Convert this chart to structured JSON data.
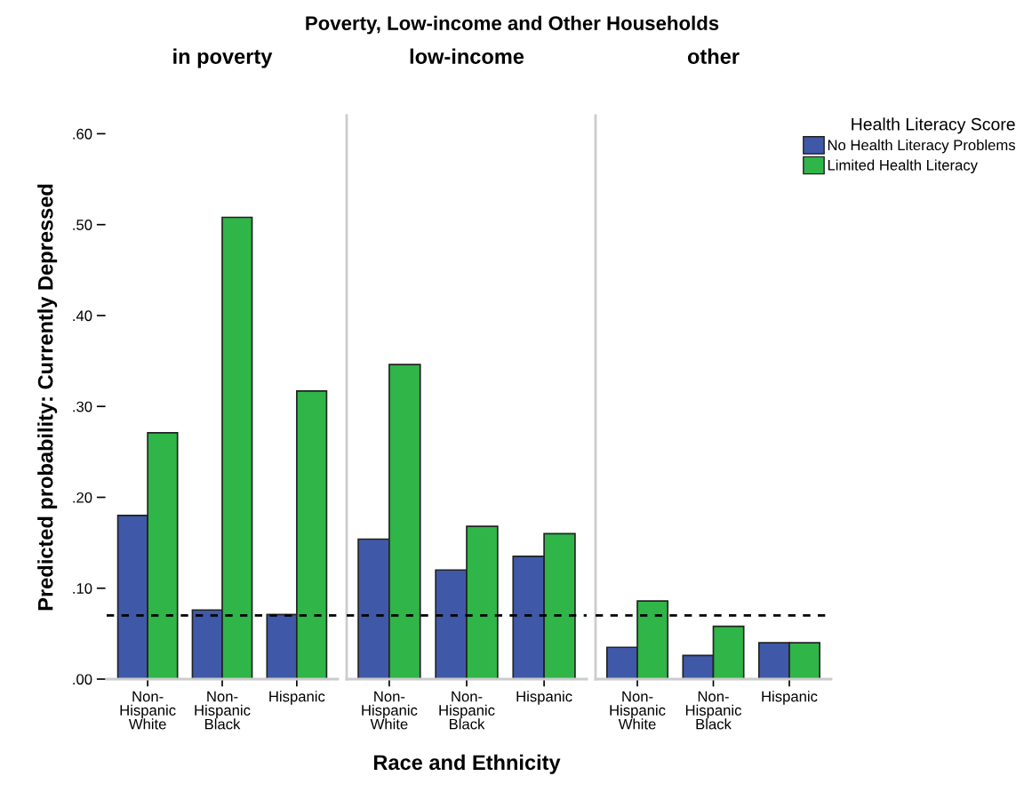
{
  "chart_data": [
    {
      "type": "bar",
      "title": "in poverty",
      "ylabel": "Predicted probability: Currently Depressed",
      "annotations": [
        "Poverty, Low-income and Other Households"
      ],
      "categories": [
        "Non-\nHispanic\nWhite",
        "Non-\nHispanic\nBlack",
        "Hispanic"
      ],
      "series": [
        {
          "color": "#3f59a8",
          "values": [
            0.18,
            0.076,
            0.071
          ]
        },
        {
          "color": "#2fb548",
          "values": [
            0.271,
            0.508,
            0.317
          ]
        }
      ],
      "ylim": [
        0,
        0.62
      ],
      "yticks": [
        {
          "value": 0,
          "label": ".00"
        },
        {
          "value": 0.1,
          "label": ".10"
        },
        {
          "value": 0.2,
          "label": ".20"
        },
        {
          "value": 0.3,
          "label": ".30"
        },
        {
          "value": 0.4,
          "label": ".40"
        },
        {
          "value": 0.5,
          "label": ".50"
        },
        {
          "value": 0.6,
          "label": ".60"
        }
      ],
      "ref_lines": [
        {
          "axis": "y",
          "value": 0.07,
          "color": "#000000",
          "line_style": "dotted"
        }
      ]
    },
    {
      "type": "bar",
      "title": "low-income",
      "xlabel": "Race and Ethnicity",
      "categories": [
        "Non-\nHispanic\nWhite",
        "Non-\nHispanic\nBlack",
        "Hispanic"
      ],
      "series": [
        {
          "color": "#3f59a8",
          "values": [
            0.154,
            0.12,
            0.135
          ]
        },
        {
          "color": "#2fb548",
          "values": [
            0.346,
            0.168,
            0.16
          ]
        }
      ],
      "ylim": [
        0,
        0.62
      ],
      "tick_labels": "x",
      "ref_lines": [
        {
          "axis": "y",
          "value": 0.07,
          "color": "#000000",
          "line_style": "dotted"
        }
      ]
    },
    {
      "type": "bar",
      "title": "other",
      "legend_title": "Health Literacy Score",
      "legend": "top right",
      "categories": [
        "Non-\nHispanic\nWhite",
        "Non-\nHispanic\nBlack",
        "Hispanic"
      ],
      "series": [
        {
          "name": "No Health Literacy Problems",
          "color": "#3f59a8",
          "values": [
            0.035,
            0.026,
            0.04
          ]
        },
        {
          "name": "Limited Health Literacy",
          "color": "#2fb548",
          "values": [
            0.086,
            0.058,
            0.04
          ]
        }
      ],
      "ylim": [
        0,
        0.62
      ],
      "tick_labels": "x",
      "ref_lines": [
        {
          "axis": "y",
          "value": 0.07,
          "color": "#000000",
          "line_style": "dotted"
        }
      ]
    }
  ]
}
